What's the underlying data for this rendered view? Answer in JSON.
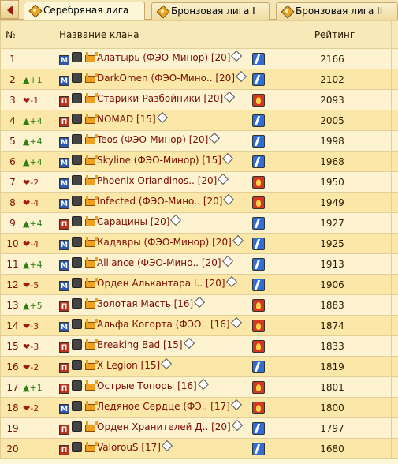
{
  "tabs": [
    {
      "label": "Серебряная лига",
      "active": true
    },
    {
      "label": "Бронзовая лига I",
      "active": false
    },
    {
      "label": "Бронзовая лига II",
      "active": false
    }
  ],
  "table": {
    "headers": {
      "num": "№",
      "name": "Название клана",
      "rating": "Рейтинг"
    },
    "rows": [
      {
        "pos": "1",
        "trend": "",
        "dir": "",
        "type": "М",
        "name": "Алатырь (ФЭО-Минор) [20]",
        "side": "bolt",
        "rating": "2166"
      },
      {
        "pos": "2",
        "trend": "+1",
        "dir": "up",
        "type": "М",
        "name": "DarkOmen (ФЭО-Мино.. [20]",
        "side": "bolt",
        "rating": "2102"
      },
      {
        "pos": "3",
        "trend": "-1",
        "dir": "down",
        "type": "П",
        "name": "Старики-Разбойники [20]",
        "side": "fire",
        "rating": "2093"
      },
      {
        "pos": "4",
        "trend": "+4",
        "dir": "up",
        "type": "П",
        "name": "NOMAD [15]",
        "side": "bolt",
        "rating": "2005"
      },
      {
        "pos": "5",
        "trend": "+4",
        "dir": "up",
        "type": "М",
        "name": "Teos (ФЭО-Минор) [20]",
        "side": "bolt",
        "rating": "1998"
      },
      {
        "pos": "6",
        "trend": "+4",
        "dir": "up",
        "type": "М",
        "name": "Skyline (ФЭО-Минор) [15]",
        "side": "bolt",
        "rating": "1968"
      },
      {
        "pos": "7",
        "trend": "-2",
        "dir": "down",
        "type": "М",
        "name": "Phoenix Orlandinos.. [20]",
        "side": "fire",
        "rating": "1950"
      },
      {
        "pos": "8",
        "trend": "-4",
        "dir": "down",
        "type": "М",
        "name": "Infected (ФЭО-Мино.. [20]",
        "side": "fire",
        "rating": "1949"
      },
      {
        "pos": "9",
        "trend": "+4",
        "dir": "up",
        "type": "П",
        "name": "Сарацины [20]",
        "side": "bolt",
        "rating": "1927"
      },
      {
        "pos": "10",
        "trend": "-4",
        "dir": "down",
        "type": "М",
        "name": "Кадавры (ФЭО-Минор) [20]",
        "side": "bolt",
        "rating": "1925"
      },
      {
        "pos": "11",
        "trend": "+4",
        "dir": "up",
        "type": "М",
        "name": "Alliance (ФЭО-Мино.. [20]",
        "side": "bolt",
        "rating": "1913"
      },
      {
        "pos": "12",
        "trend": "-5",
        "dir": "down",
        "type": "М",
        "name": "Орден Алькантара I.. [20]",
        "side": "bolt",
        "rating": "1906"
      },
      {
        "pos": "13",
        "trend": "+5",
        "dir": "up",
        "type": "П",
        "name": "Золотая Масть [16]",
        "side": "fire",
        "rating": "1883"
      },
      {
        "pos": "14",
        "trend": "-3",
        "dir": "down",
        "type": "М",
        "name": "Альфа Когорта (ФЭО.. [16]",
        "side": "fire",
        "rating": "1874"
      },
      {
        "pos": "15",
        "trend": "-3",
        "dir": "down",
        "type": "П",
        "name": "Breaking Bad [15]",
        "side": "fire",
        "rating": "1833"
      },
      {
        "pos": "16",
        "trend": "-2",
        "dir": "down",
        "type": "П",
        "name": "X Legion [15]",
        "side": "bolt",
        "rating": "1819"
      },
      {
        "pos": "17",
        "trend": "+1",
        "dir": "up",
        "type": "П",
        "name": "Острые Топоры [16]",
        "side": "fire",
        "rating": "1801"
      },
      {
        "pos": "18",
        "trend": "-2",
        "dir": "down",
        "type": "М",
        "name": "Ледяное Сердце (ФЭ.. [17]",
        "side": "fire",
        "rating": "1800"
      },
      {
        "pos": "19",
        "trend": "",
        "dir": "",
        "type": "П",
        "name": "Орден Хранителей Д.. [20]",
        "side": "bolt",
        "rating": "1797"
      },
      {
        "pos": "20",
        "trend": "",
        "dir": "",
        "type": "П",
        "name": "ValorouS [17]",
        "side": "bolt",
        "rating": "1680"
      }
    ]
  }
}
